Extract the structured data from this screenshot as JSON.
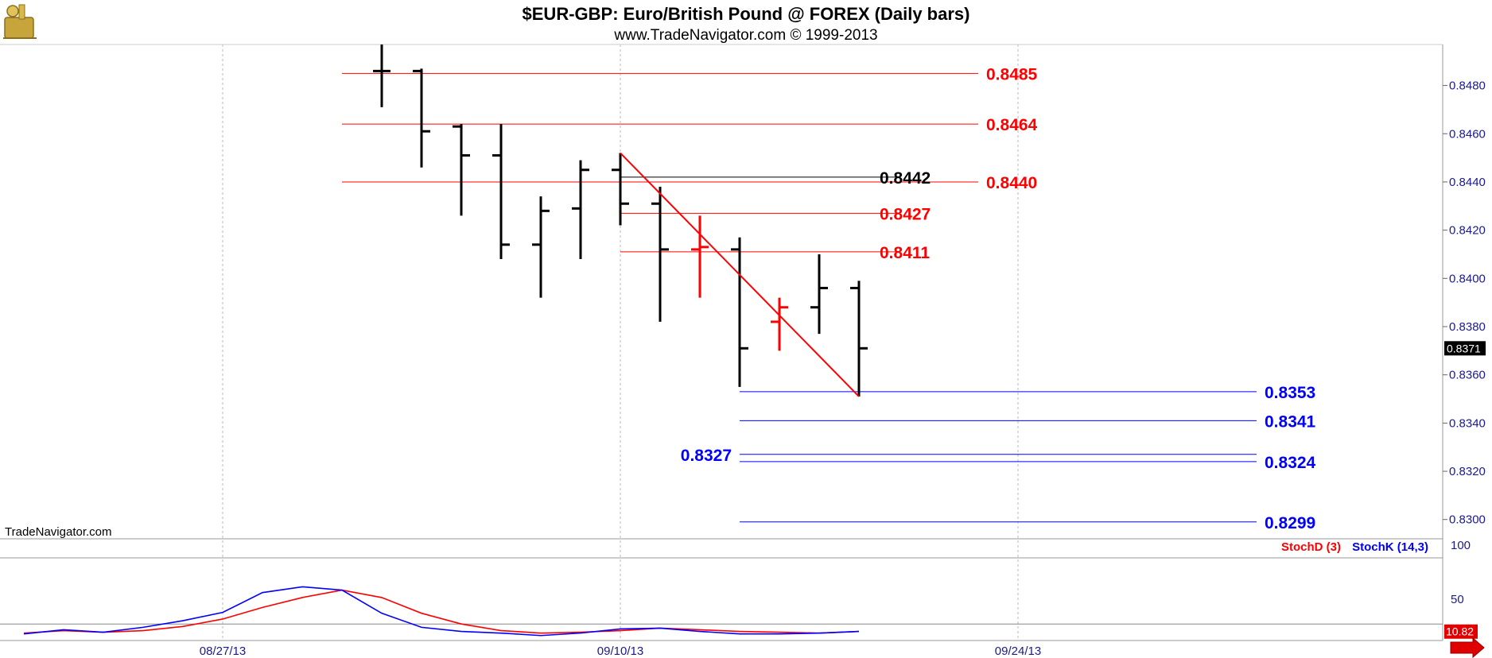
{
  "header": {
    "title": "$EUR-GBP:  Euro/British Pound @ FOREX  (Daily bars)",
    "subtitle": "www.TradeNavigator.com © 1999-2013"
  },
  "watermark": "TradeNavigator.com",
  "colors": {
    "bar": "#000000",
    "highlight_bar": "#ff0000",
    "resistance": "#ff0000",
    "support": "#0000ff",
    "black_level": "#000000",
    "axis_text": "#1a1a8c",
    "stoch_d": "#ff0000",
    "stoch_k": "#0000ff"
  },
  "chart_data": [
    {
      "type": "ohlc",
      "name": "price",
      "ylim": [
        0.8292,
        0.8497
      ],
      "ytick_labels": [
        "0.8300",
        "0.8320",
        "0.8340",
        "0.8360",
        "0.8380",
        "0.8400",
        "0.8420",
        "0.8440",
        "0.8460",
        "0.8480"
      ],
      "ytick_values": [
        0.83,
        0.832,
        0.834,
        0.836,
        0.838,
        0.84,
        0.842,
        0.844,
        0.846,
        0.848
      ],
      "xtick_labels": [
        "08/27/13",
        "09/10/13",
        "09/24/13"
      ],
      "xtick_index": [
        -1,
        9,
        19
      ],
      "last_price_label": "0.8371",
      "last_price": 0.8371,
      "bars": [
        {
          "i": 3,
          "o": 0.8486,
          "h": 0.8497,
          "l": 0.8471,
          "c": 0.8486,
          "hl": false
        },
        {
          "i": 4,
          "o": 0.8486,
          "h": 0.8487,
          "l": 0.8446,
          "c": 0.8461,
          "hl": false
        },
        {
          "i": 5,
          "o": 0.8463,
          "h": 0.8464,
          "l": 0.8426,
          "c": 0.8451,
          "hl": false
        },
        {
          "i": 6,
          "o": 0.8451,
          "h": 0.8464,
          "l": 0.8408,
          "c": 0.8414,
          "hl": false
        },
        {
          "i": 7,
          "o": 0.8414,
          "h": 0.8434,
          "l": 0.8392,
          "c": 0.8428,
          "hl": false
        },
        {
          "i": 8,
          "o": 0.8429,
          "h": 0.8449,
          "l": 0.8408,
          "c": 0.8445,
          "hl": false
        },
        {
          "i": 9,
          "o": 0.8445,
          "h": 0.8452,
          "l": 0.8422,
          "c": 0.8431,
          "hl": false
        },
        {
          "i": 10,
          "o": 0.8431,
          "h": 0.8438,
          "l": 0.8382,
          "c": 0.8412,
          "hl": false
        },
        {
          "i": 11,
          "o": 0.8412,
          "h": 0.8426,
          "l": 0.8392,
          "c": 0.8413,
          "hl": true
        },
        {
          "i": 12,
          "o": 0.8412,
          "h": 0.8417,
          "l": 0.8355,
          "c": 0.8371,
          "hl": false
        },
        {
          "i": 13,
          "o": 0.8382,
          "h": 0.8392,
          "l": 0.837,
          "c": 0.8388,
          "hl": true
        },
        {
          "i": 14,
          "o": 0.8388,
          "h": 0.841,
          "l": 0.8377,
          "c": 0.8396,
          "hl": false
        },
        {
          "i": 15,
          "o": 0.8396,
          "h": 0.8399,
          "l": 0.8351,
          "c": 0.8371,
          "hl": false
        }
      ],
      "trendline": {
        "from": {
          "i": 9,
          "y": 0.8452
        },
        "to": {
          "i": 15,
          "y": 0.8351
        }
      },
      "levels": [
        {
          "label": "0.8485",
          "value": 0.8485,
          "from_i": 2,
          "to_i": 18,
          "role": "resistance",
          "label_side": "right"
        },
        {
          "label": "0.8464",
          "value": 0.8464,
          "from_i": 2,
          "to_i": 18,
          "role": "resistance",
          "label_side": "right"
        },
        {
          "label": "0.8440",
          "value": 0.844,
          "from_i": 2,
          "to_i": 18,
          "role": "resistance",
          "label_side": "right"
        },
        {
          "label": "0.8442",
          "value": 0.8442,
          "from_i": 9,
          "to_i": 16,
          "role": "black_level",
          "label_side": "mid"
        },
        {
          "label": "0.8427",
          "value": 0.8427,
          "from_i": 9,
          "to_i": 16,
          "role": "resistance",
          "label_side": "mid"
        },
        {
          "label": "0.8411",
          "value": 0.8411,
          "from_i": 9,
          "to_i": 16,
          "role": "resistance",
          "label_side": "mid"
        },
        {
          "label": "0.8353",
          "value": 0.8353,
          "from_i": 12,
          "to_i": 25,
          "role": "support",
          "label_side": "right"
        },
        {
          "label": "0.8341",
          "value": 0.8341,
          "from_i": 12,
          "to_i": 25,
          "role": "support",
          "label_side": "right"
        },
        {
          "label": "0.8327",
          "value": 0.8327,
          "from_i": 12,
          "to_i": 25,
          "role": "support",
          "label_side": "left"
        },
        {
          "label": "0.8324",
          "value": 0.8324,
          "from_i": 12,
          "to_i": 25,
          "role": "support",
          "label_side": "right"
        },
        {
          "label": "0.8299",
          "value": 0.8299,
          "from_i": 12,
          "to_i": 25,
          "role": "support",
          "label_side": "right"
        }
      ]
    },
    {
      "type": "line",
      "name": "stochastic",
      "ylim": [
        0,
        100
      ],
      "ytick_labels": [
        "100",
        "50"
      ],
      "ytick_values": [
        100,
        50
      ],
      "reference_line": 20,
      "last_value_label": "10.82",
      "last_value": 10.82,
      "legend": [
        "StochD (3)",
        "StochK (14,3)"
      ],
      "series": [
        {
          "name": "StochD (3)",
          "color_key": "stoch_d",
          "x": [
            -6,
            -5,
            -4,
            -3,
            -2,
            -1,
            0,
            1,
            2,
            3,
            4,
            5,
            6,
            7,
            8,
            9,
            10,
            11,
            12,
            13,
            14,
            15
          ],
          "y": [
            9,
            12,
            10,
            12,
            17,
            26,
            40,
            52,
            61,
            52,
            33,
            20,
            12,
            9,
            10,
            12,
            15,
            13,
            11,
            10,
            9,
            11
          ]
        },
        {
          "name": "StochK (14,3)",
          "color_key": "stoch_k",
          "x": [
            -6,
            -5,
            -4,
            -3,
            -2,
            -1,
            0,
            1,
            2,
            3,
            4,
            5,
            6,
            7,
            8,
            9,
            10,
            11,
            12,
            13,
            14,
            15
          ],
          "y": [
            8,
            13,
            10,
            16,
            24,
            34,
            58,
            65,
            61,
            33,
            16,
            11,
            9,
            6,
            9,
            14,
            15,
            11,
            8,
            8,
            9,
            11
          ]
        }
      ]
    }
  ]
}
